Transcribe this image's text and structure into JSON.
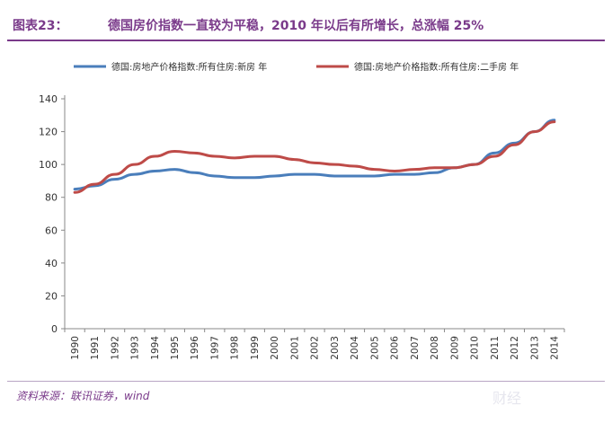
{
  "header": {
    "label": "图表23：",
    "title": "德国房价指数一直较为平稳，2010 年以后有所增长，总涨幅 25%"
  },
  "footer": {
    "source": "资料来源：联讯证券，wind",
    "watermark": "财经"
  },
  "colors": {
    "accent": "#7a3a8a",
    "series_new": "#4a7ebb",
    "series_existing": "#be4b48"
  },
  "chart_data": {
    "type": "line",
    "title": "",
    "xlabel": "",
    "ylabel": "",
    "ylim": [
      0,
      140
    ],
    "yticks": [
      0,
      20,
      40,
      60,
      80,
      100,
      120,
      140
    ],
    "grid": false,
    "legend_position": "top",
    "x": [
      "1990",
      "1991",
      "1992",
      "1993",
      "1994",
      "1995",
      "1996",
      "1997",
      "1998",
      "1999",
      "2000",
      "2001",
      "2002",
      "2003",
      "2004",
      "2005",
      "2006",
      "2007",
      "2008",
      "2009",
      "2010",
      "2011",
      "2012",
      "2013",
      "2014"
    ],
    "series": [
      {
        "name": "德国:房地产价格指数:所有住房:新房 年",
        "color": "#4a7ebb",
        "values": [
          85,
          87,
          91,
          94,
          96,
          97,
          95,
          93,
          92,
          92,
          93,
          94,
          94,
          93,
          93,
          93,
          94,
          94,
          95,
          98,
          100,
          107,
          113,
          120,
          127
        ]
      },
      {
        "name": "德国:房地产价格指数:所有住房:二手房 年",
        "color": "#be4b48",
        "values": [
          83,
          88,
          94,
          100,
          105,
          108,
          107,
          105,
          104,
          105,
          105,
          103,
          101,
          100,
          99,
          97,
          96,
          97,
          98,
          98,
          100,
          105,
          112,
          120,
          126
        ]
      }
    ]
  }
}
